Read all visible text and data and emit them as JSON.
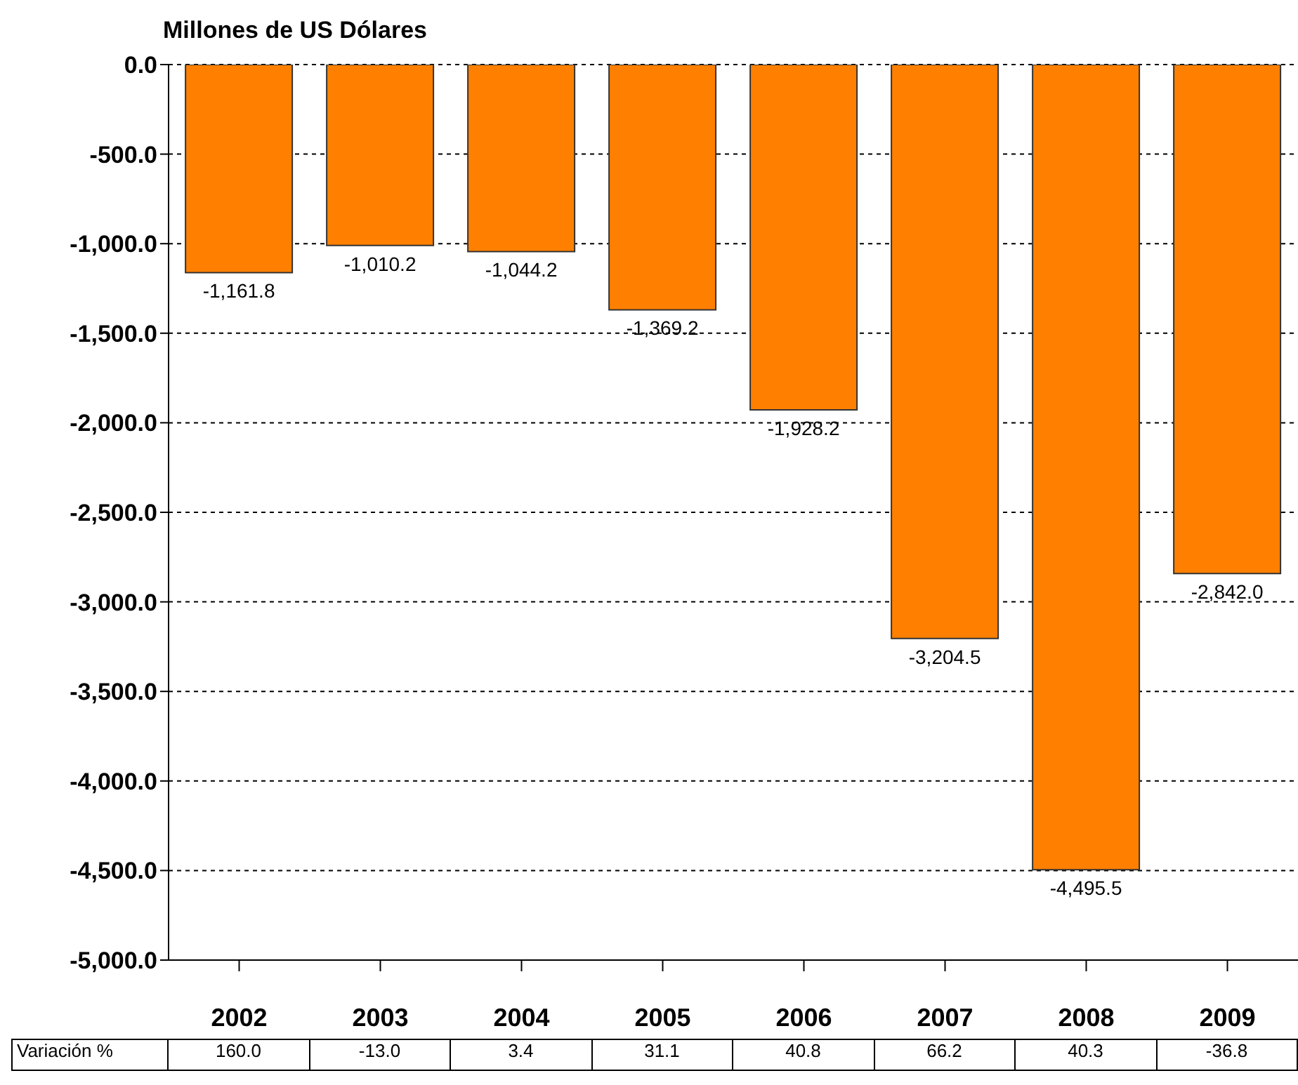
{
  "chart_data": {
    "type": "bar",
    "title": "Millones de US Dólares",
    "categories": [
      "2002",
      "2003",
      "2004",
      "2005",
      "2006",
      "2007",
      "2008",
      "2009"
    ],
    "values": [
      -1161.8,
      -1010.2,
      -1044.2,
      -1369.2,
      -1928.2,
      -3204.5,
      -4495.5,
      -2842.0
    ],
    "value_labels": [
      "-1,161.8",
      "-1,010.2",
      "-1,044.2",
      "-1,369.2",
      "-1,928.2",
      "-3,204.5",
      "-4,495.5",
      "-2,842.0"
    ],
    "color": "#ff8000",
    "ylim": [
      -5000,
      0
    ],
    "yticks": [
      {
        "value": 0,
        "label": "0.0"
      },
      {
        "value": -500,
        "label": "-500.0"
      },
      {
        "value": -1000,
        "label": "-1,000.0"
      },
      {
        "value": -1500,
        "label": "-1,500.0"
      },
      {
        "value": -2000,
        "label": "-2,000.0"
      },
      {
        "value": -2500,
        "label": "-2,500.0"
      },
      {
        "value": -3000,
        "label": "-3,000.0"
      },
      {
        "value": -3500,
        "label": "-3,500.0"
      },
      {
        "value": -4000,
        "label": "-4,000.0"
      },
      {
        "value": -4500,
        "label": "-4,500.0"
      },
      {
        "value": -5000,
        "label": "-5,000.0"
      }
    ],
    "grid": "y",
    "annotations": [
      "Variación %",
      "160.0",
      "-13.0",
      "3.4",
      "31.1",
      "40.8",
      "66.2",
      "40.3",
      "-36.8"
    ]
  }
}
